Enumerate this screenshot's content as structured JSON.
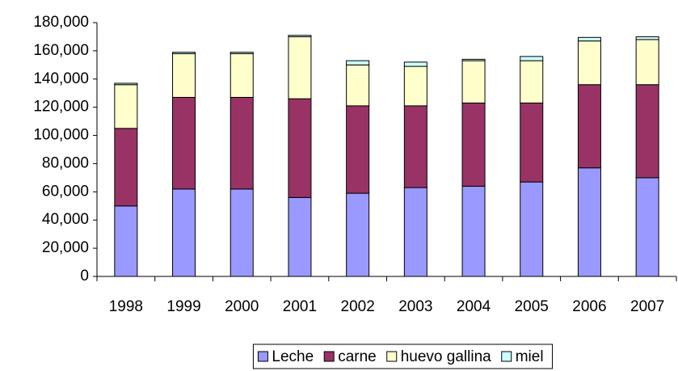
{
  "chart_data": {
    "type": "stacked_bar",
    "categories": [
      "1998",
      "1999",
      "2000",
      "2001",
      "2002",
      "2003",
      "2004",
      "2005",
      "2006",
      "2007"
    ],
    "series": [
      {
        "name": "Leche",
        "color": "#9999ff",
        "values": [
          50000,
          62000,
          62000,
          56000,
          59000,
          63000,
          64000,
          67000,
          77000,
          70000
        ]
      },
      {
        "name": "carne",
        "color": "#993366",
        "values": [
          55000,
          65000,
          65000,
          70000,
          62000,
          58000,
          59000,
          56000,
          59000,
          66000
        ]
      },
      {
        "name": "huevo gallina",
        "color": "#ffffcc",
        "values": [
          31000,
          31000,
          31000,
          44000,
          29000,
          28000,
          30000,
          30000,
          31000,
          32000
        ]
      },
      {
        "name": "miel",
        "color": "#ccffff",
        "values": [
          1000,
          1000,
          1000,
          1000,
          3000,
          3000,
          1000,
          3000,
          2500,
          2000
        ]
      }
    ],
    "ylim": [
      0,
      180000
    ],
    "yticks": [
      0,
      {
        "value": 20000,
        "label": "20,000"
      },
      {
        "value": 40000,
        "label": "40,000"
      },
      {
        "value": 60000,
        "label": "60,000"
      },
      {
        "value": 80000,
        "label": "80,000"
      },
      {
        "value": 100000,
        "label": "100,000"
      },
      {
        "value": 120000,
        "label": "120,000"
      },
      {
        "value": 140000,
        "label": "140,000"
      },
      {
        "value": 160000,
        "label": "160,000"
      },
      {
        "value": 180000,
        "label": "180,000"
      }
    ],
    "grid": false,
    "legend": "bottom"
  }
}
